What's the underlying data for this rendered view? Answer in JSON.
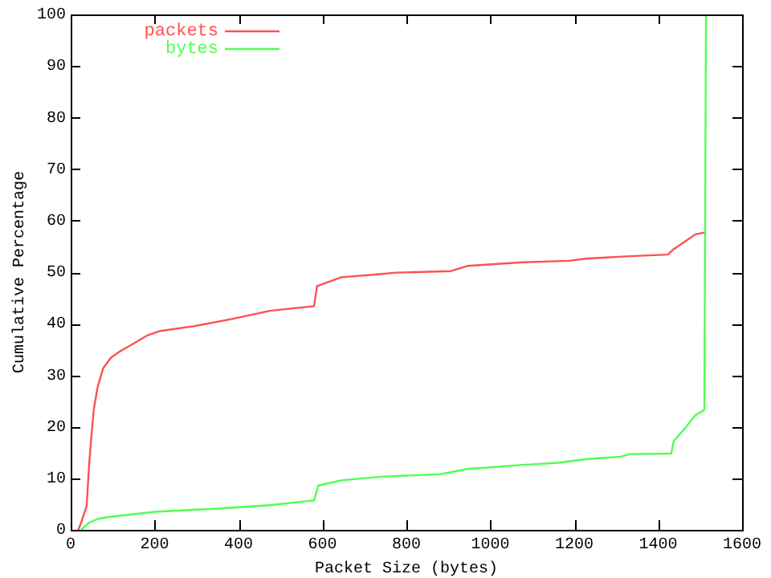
{
  "chart_data": {
    "type": "line",
    "xlabel": "Packet Size (bytes)",
    "ylabel": "Cumulative Percentage",
    "xlim": [
      0,
      1600
    ],
    "ylim": [
      0,
      100
    ],
    "xticks": [
      0,
      200,
      400,
      600,
      800,
      1000,
      1200,
      1400,
      1600
    ],
    "yticks": [
      0,
      10,
      20,
      30,
      40,
      50,
      60,
      70,
      80,
      90,
      100
    ],
    "grid": false,
    "legend": "top left",
    "marker": "none",
    "line_style": "solid",
    "series": [
      {
        "name": "packets",
        "color": "#ff5050",
        "x": [
          18,
          25,
          38,
          44,
          48,
          55,
          64,
          77,
          96,
          115,
          149,
          182,
          214,
          293,
          384,
          475,
          580,
          587,
          645,
          737,
          775,
          906,
          945,
          1076,
          1187,
          1227,
          1332,
          1423,
          1436,
          1465,
          1488,
          1510
        ],
        "values": [
          0,
          1.4,
          4.6,
          12.6,
          16.9,
          23.3,
          27.6,
          31.3,
          33.4,
          34.5,
          36.1,
          37.7,
          38.6,
          39.5,
          40.9,
          42.5,
          43.4,
          47.3,
          49,
          49.6,
          49.9,
          50.2,
          51.2,
          51.9,
          52.2,
          52.6,
          53.1,
          53.4,
          54.4,
          56,
          57.3,
          57.7
        ]
      },
      {
        "name": "bytes",
        "color": "#50ff50",
        "x": [
          25,
          44,
          64,
          90,
          201,
          345,
          475,
          580,
          590,
          645,
          737,
          881,
          945,
          1076,
          1162,
          1227,
          1311,
          1332,
          1431,
          1437,
          1465,
          1488,
          1510,
          1514
        ],
        "values": [
          0,
          1.4,
          2.1,
          2.5,
          3.5,
          4.1,
          4.8,
          5.7,
          8.6,
          9.6,
          10.3,
          10.8,
          11.8,
          12.6,
          13,
          13.7,
          14.2,
          14.7,
          14.8,
          17.2,
          19.8,
          22.2,
          23.3,
          100
        ]
      }
    ]
  }
}
